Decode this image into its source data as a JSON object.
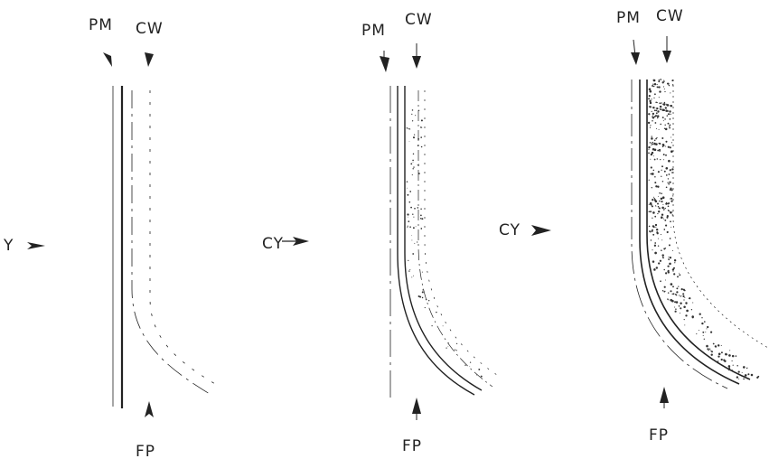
{
  "panels": [
    {
      "pm": "PM",
      "cw": "CW",
      "cy": "Y",
      "fp": "FP"
    },
    {
      "pm": "PM",
      "cw": "CW",
      "cy": "CY",
      "fp": "FP"
    },
    {
      "pm": "PM",
      "cw": "CW",
      "cy": "CY",
      "fp": "FP"
    }
  ]
}
